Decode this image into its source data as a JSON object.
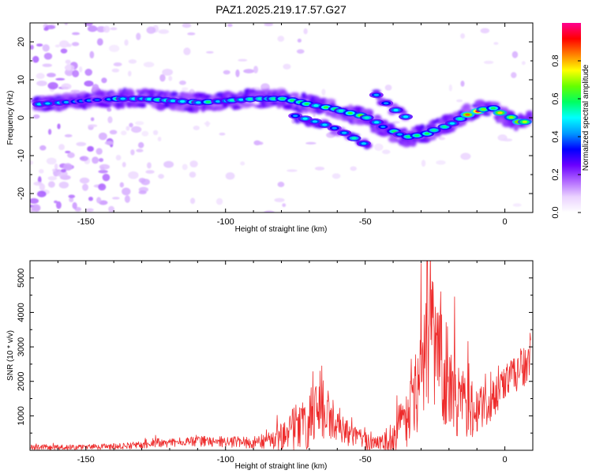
{
  "title": "PAZ1.2025.219.17.57.G27",
  "chart_data": [
    {
      "type": "heatmap",
      "xlabel": "Height of straight line (km)",
      "ylabel": "Frequency (Hz)",
      "xlim": [
        -170,
        10
      ],
      "ylim": [
        -25,
        25
      ],
      "xticks": [
        -150,
        -100,
        -50,
        0
      ],
      "yticks": [
        -20,
        -10,
        0,
        10,
        20
      ],
      "colorbar": {
        "label": "Normalized spectral amplitude",
        "range": [
          0,
          1
        ],
        "ticks": [
          0.0,
          0.2,
          0.4,
          0.6,
          0.8
        ],
        "colors": [
          "#ffffff",
          "#ead2ff",
          "#b066ff",
          "#6a00ff",
          "#0000ff",
          "#0098ff",
          "#00ffff",
          "#00ff60",
          "#66ff00",
          "#ffff00",
          "#ff8000",
          "#ff0000",
          "#ff0090"
        ]
      },
      "ridge_frequency": {
        "x": [
          -168,
          -160,
          -150,
          -140,
          -130,
          -120,
          -110,
          -100,
          -90,
          -80,
          -70,
          -60,
          -55,
          -50,
          -45,
          -40,
          -35,
          -30,
          -25,
          -20,
          -15,
          -10,
          -5,
          0,
          5,
          10
        ],
        "y": [
          3.5,
          4.0,
          4.5,
          5.0,
          5.0,
          4.5,
          4.0,
          4.5,
          5.0,
          5.0,
          3.5,
          2.0,
          1.0,
          0.0,
          -2.0,
          -4.0,
          -5.0,
          -4.5,
          -3.0,
          -1.5,
          0.5,
          2.0,
          2.5,
          0.5,
          -1.5,
          -0.5
        ]
      },
      "secondary_ridges": [
        {
          "x": [
            -75,
            -68,
            -60,
            -55,
            -50,
            -48
          ],
          "y": [
            0.5,
            -1.0,
            -3.0,
            -5.0,
            -7.0,
            -8.5
          ]
        },
        {
          "x": [
            -46,
            -42,
            -38,
            -35
          ],
          "y": [
            6.0,
            3.5,
            1.5,
            0.0
          ]
        }
      ]
    },
    {
      "type": "line",
      "xlabel": "Height of straight line (km)",
      "ylabel": "SNR (10 * v/v)",
      "xlim": [
        -170,
        10
      ],
      "ylim": [
        0,
        5500
      ],
      "xticks": [
        -150,
        -100,
        -50,
        0
      ],
      "yticks": [
        1000,
        2000,
        3000,
        4000,
        5000
      ],
      "color": "#ee2b2b",
      "envelope": {
        "x": [
          -170,
          -160,
          -150,
          -140,
          -130,
          -120,
          -110,
          -100,
          -90,
          -85,
          -80,
          -75,
          -70,
          -67,
          -65,
          -62,
          -60,
          -57,
          -55,
          -50,
          -45,
          -40,
          -38,
          -35,
          -32,
          -30,
          -28,
          -26,
          -24,
          -22,
          -20,
          -18,
          -15,
          -12,
          -10,
          -8,
          -5,
          -2,
          0,
          3,
          6,
          8,
          9
        ],
        "y": [
          100,
          80,
          90,
          110,
          150,
          220,
          260,
          250,
          220,
          220,
          350,
          650,
          900,
          1400,
          1300,
          1000,
          700,
          550,
          400,
          250,
          200,
          350,
          700,
          1000,
          1600,
          2200,
          2700,
          3200,
          2600,
          2300,
          2100,
          1600,
          1400,
          1200,
          1150,
          1200,
          1350,
          1700,
          2050,
          2200,
          2400,
          2300,
          2700
        ]
      },
      "noise": {
        "x": [
          -170,
          -140,
          -110,
          -85,
          -75,
          -65,
          -60,
          -45,
          -35,
          -30,
          -26,
          -22,
          -18,
          -10,
          0,
          9
        ],
        "y": [
          80,
          90,
          150,
          180,
          700,
          1000,
          450,
          200,
          900,
          1500,
          2000,
          1700,
          1200,
          700,
          500,
          650
        ]
      },
      "peaks": [
        {
          "x": -65.5,
          "y": 2450
        },
        {
          "x": -28,
          "y": 5450
        },
        {
          "x": -26,
          "y": 4900
        },
        {
          "x": -23,
          "y": 4600
        },
        {
          "x": -18,
          "y": 4450
        },
        {
          "x": 9,
          "y": 3400
        }
      ]
    }
  ]
}
